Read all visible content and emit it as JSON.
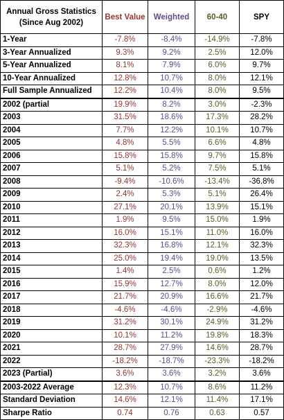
{
  "header": {
    "title": "Annual Gross Statistics (Since Aug 2002)",
    "columns": [
      "Best Value",
      "Weighted",
      "60-40",
      "SPY"
    ]
  },
  "colors": {
    "best_value": "#943634",
    "weighted": "#5f4b8b",
    "sixty_forty": "#4f6228",
    "spy": "#000000"
  },
  "rows": [
    {
      "label": "1-Year",
      "values": [
        "-7.8%",
        "-8.4%",
        "-14.9%",
        "-7.8%"
      ]
    },
    {
      "label": "3-Year Annualized",
      "values": [
        "9.3%",
        "9.2%",
        "2.5%",
        "12.0%"
      ]
    },
    {
      "label": "5-Year Annualized",
      "values": [
        "8.1%",
        "7.9%",
        "6.0%",
        "9.7%"
      ]
    },
    {
      "label": "10-Year Annualized",
      "values": [
        "12.8%",
        "10.7%",
        "8.0%",
        "12.1%"
      ]
    },
    {
      "label": "Full Sample Annualized",
      "values": [
        "12.2%",
        "10.4%",
        "8.0%",
        "9.5%"
      ]
    },
    {
      "label": "2002 (partial",
      "values": [
        "19.9%",
        "8.2%",
        "3.0%",
        "-2.3%"
      ]
    },
    {
      "label": "2003",
      "values": [
        "31.5%",
        "18.6%",
        "17.3%",
        "28.2%"
      ]
    },
    {
      "label": "2004",
      "values": [
        "7.7%",
        "12.2%",
        "10.1%",
        "10.7%"
      ]
    },
    {
      "label": "2005",
      "values": [
        "4.8%",
        "5.5%",
        "6.6%",
        "4.8%"
      ]
    },
    {
      "label": "2006",
      "values": [
        "15.8%",
        "15.8%",
        "9.7%",
        "15.8%"
      ]
    },
    {
      "label": "2007",
      "values": [
        "5.1%",
        "5.2%",
        "7.5%",
        "5.1%"
      ]
    },
    {
      "label": "2008",
      "values": [
        "-9.4%",
        "-10.6%",
        "-13.4%",
        "-36.8%"
      ]
    },
    {
      "label": "2009",
      "values": [
        "2.4%",
        "5.3%",
        "5.1%",
        "26.4%"
      ]
    },
    {
      "label": "2010",
      "values": [
        "27.1%",
        "20.1%",
        "13.9%",
        "15.1%"
      ]
    },
    {
      "label": "2011",
      "values": [
        "1.9%",
        "9.5%",
        "15.0%",
        "1.9%"
      ]
    },
    {
      "label": "2012",
      "values": [
        "16.0%",
        "15.1%",
        "11.0%",
        "16.0%"
      ]
    },
    {
      "label": "2013",
      "values": [
        "32.3%",
        "16.8%",
        "12.1%",
        "32.3%"
      ]
    },
    {
      "label": "2014",
      "values": [
        "25.0%",
        "19.4%",
        "19.0%",
        "13.5%"
      ]
    },
    {
      "label": "2015",
      "values": [
        "1.4%",
        "2.5%",
        "0.6%",
        "1.2%"
      ]
    },
    {
      "label": "2016",
      "values": [
        "15.9%",
        "12.7%",
        "8.0%",
        "12.0%"
      ]
    },
    {
      "label": "2017",
      "values": [
        "21.7%",
        "20.9%",
        "16.6%",
        "21.7%"
      ]
    },
    {
      "label": "2018",
      "values": [
        "-4.6%",
        "-4.6%",
        "-2.9%",
        "-4.6%"
      ]
    },
    {
      "label": "2019",
      "values": [
        "31.2%",
        "30.1%",
        "24.9%",
        "31.2%"
      ]
    },
    {
      "label": "2020",
      "values": [
        "10.1%",
        "11.2%",
        "19.8%",
        "18.3%"
      ]
    },
    {
      "label": "2021",
      "values": [
        "28.7%",
        "27.9%",
        "14.6%",
        "28.7%"
      ]
    },
    {
      "label": "2022",
      "values": [
        "-18.2%",
        "-18.7%",
        "-23.3%",
        "-18.2%"
      ]
    },
    {
      "label": "2023 (Partial)",
      "values": [
        "3.6%",
        "3.6%",
        "3.2%",
        "3.6%"
      ]
    },
    {
      "label": "2003-2022 Average",
      "values": [
        "12.3%",
        "10.7%",
        "8.6%",
        "11.2%"
      ]
    },
    {
      "label": "Standard Deviation",
      "values": [
        "14.6%",
        "12.1%",
        "11.4%",
        "17.1%"
      ]
    },
    {
      "label": "Sharpe Ratio",
      "values": [
        "0.74",
        "0.76",
        "0.63",
        "0.57"
      ]
    }
  ]
}
